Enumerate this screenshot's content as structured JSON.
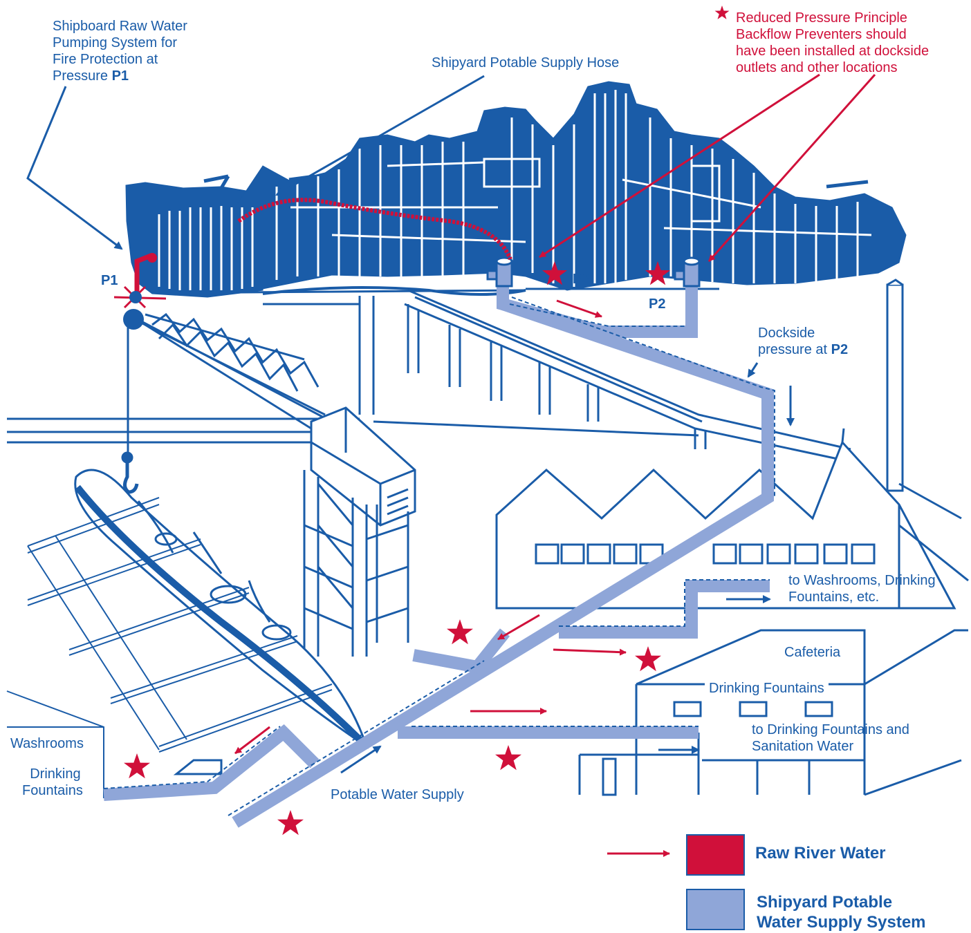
{
  "labels": {
    "raw_pump_l1": "Shipboard Raw Water",
    "raw_pump_l2": "Pumping System for",
    "raw_pump_l3": "Fire Protection at",
    "raw_pump_l4a": "Pressure ",
    "raw_pump_l4b": "P1",
    "hose": "Shipyard Potable Supply Hose",
    "rpp_l1": "Reduced Pressure Principle",
    "rpp_l2": "Backflow Preventers should",
    "rpp_l3": "have been installed at dockside",
    "rpp_l4": "outlets and other locations",
    "p1": "P1",
    "p2_a": "P2",
    "p2_b": "P2",
    "dockside_l1": "Dockside",
    "dockside_l2a": "pressure at ",
    "dockside_l2b": "P2",
    "washrooms_fountains_l1": "to Washrooms, Drinking",
    "washrooms_fountains_l2": "Fountains, etc.",
    "cafeteria": "Cafeteria",
    "drinking_fountains_caf": "Drinking Fountains",
    "to_fountains_l1": "to Drinking Fountains and",
    "to_fountains_l2": "Sanitation Water",
    "washrooms": "Washrooms",
    "drinking_fountains_l1": "Drinking",
    "drinking_fountains_l2": "Fountains",
    "potable_supply": "Potable Water Supply"
  },
  "legend": {
    "raw": "Raw River Water",
    "potable_l1": "Shipyard Potable",
    "potable_l2": "Water Supply System"
  },
  "colors": {
    "line": "#1a5ca8",
    "raw": "#d0103a",
    "potable": "#8fa6d8"
  }
}
